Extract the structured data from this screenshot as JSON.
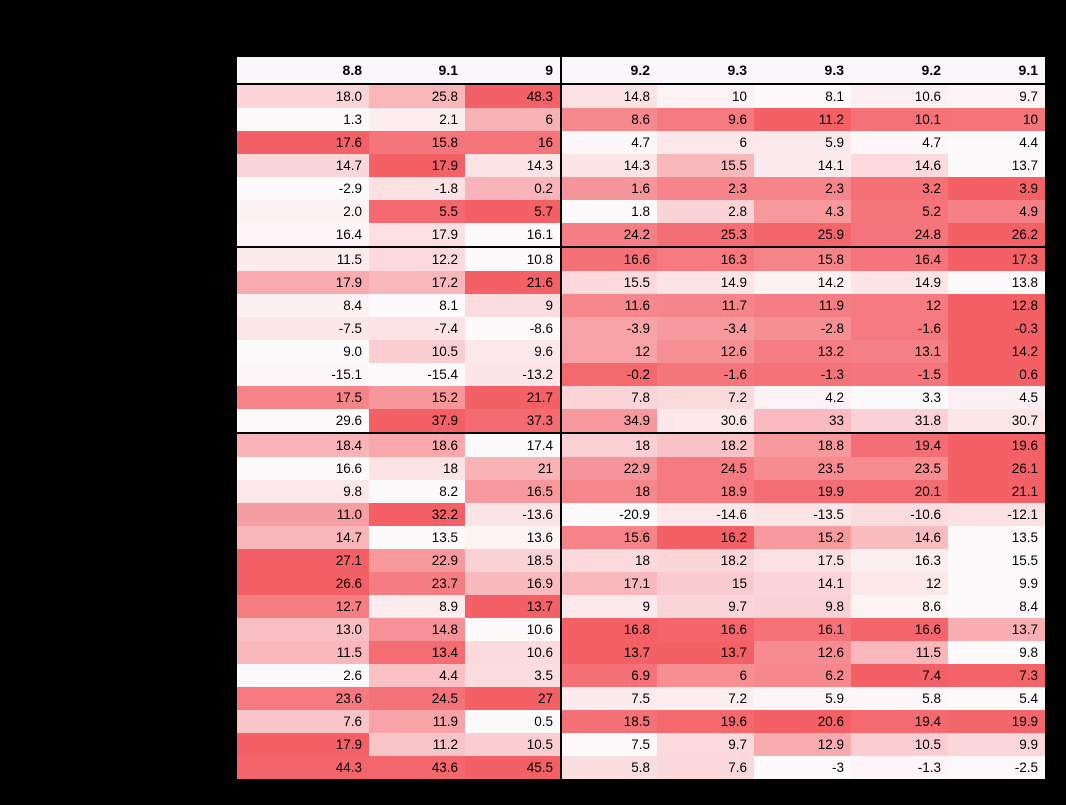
{
  "page": {
    "background_color": "#000000"
  },
  "chart_data": {
    "type": "heatmap",
    "layout_hint": "table heatmap, per-row min-max shading white to red, right-aligned numerals, black group separator rules after rows 7 and 15, vertical black divider after column 3",
    "colors": {
      "gradient_min": "#fdfafc",
      "gradient_max": "#f36167",
      "header_background": "#f9f7fa",
      "border": "#000000",
      "text": "#000000"
    },
    "columns": [
      "8.8",
      "9.1",
      "9",
      "9.2",
      "9.3",
      "9.3",
      "9.2",
      "9.1"
    ],
    "group_breaks_after_row": [
      7,
      15
    ],
    "rows": [
      [
        "18.0",
        "25.8",
        "48.3",
        "14.8",
        "10",
        "8.1",
        "10.6",
        "9.7"
      ],
      [
        "1.3",
        "2.1",
        "6",
        "8.6",
        "9.6",
        "11.2",
        "10.1",
        "10"
      ],
      [
        "17.6",
        "15.8",
        "16",
        "4.7",
        "6",
        "5.9",
        "4.7",
        "4.4"
      ],
      [
        "14.7",
        "17.9",
        "14.3",
        "14.3",
        "15.5",
        "14.1",
        "14.6",
        "13.7"
      ],
      [
        "-2.9",
        "-1.8",
        "0.2",
        "1.6",
        "2.3",
        "2.3",
        "3.2",
        "3.9"
      ],
      [
        "2.0",
        "5.5",
        "5.7",
        "1.8",
        "2.8",
        "4.3",
        "5.2",
        "4.9"
      ],
      [
        "16.4",
        "17.9",
        "16.1",
        "24.2",
        "25.3",
        "25.9",
        "24.8",
        "26.2"
      ],
      [
        "11.5",
        "12.2",
        "10.8",
        "16.6",
        "16.3",
        "15.8",
        "16.4",
        "17.3"
      ],
      [
        "17.9",
        "17.2",
        "21.6",
        "15.5",
        "14.9",
        "14.2",
        "14.9",
        "13.8"
      ],
      [
        "8.4",
        "8.1",
        "9",
        "11.6",
        "11.7",
        "11.9",
        "12",
        "12.8"
      ],
      [
        "-7.5",
        "-7.4",
        "-8.6",
        "-3.9",
        "-3.4",
        "-2.8",
        "-1.6",
        "-0.3"
      ],
      [
        "9.0",
        "10.5",
        "9.6",
        "12",
        "12.6",
        "13.2",
        "13.1",
        "14.2"
      ],
      [
        "-15.1",
        "-15.4",
        "-13.2",
        "-0.2",
        "-1.6",
        "-1.3",
        "-1.5",
        "0.6"
      ],
      [
        "17.5",
        "15.2",
        "21.7",
        "7.8",
        "7.2",
        "4.2",
        "3.3",
        "4.5"
      ],
      [
        "29.6",
        "37.9",
        "37.3",
        "34.9",
        "30.6",
        "33",
        "31.8",
        "30.7"
      ],
      [
        "18.4",
        "18.6",
        "17.4",
        "18",
        "18.2",
        "18.8",
        "19.4",
        "19.6"
      ],
      [
        "16.6",
        "18",
        "21",
        "22.9",
        "24.5",
        "23.5",
        "23.5",
        "26.1"
      ],
      [
        "9.8",
        "8.2",
        "16.5",
        "18",
        "18.9",
        "19.9",
        "20.1",
        "21.1"
      ],
      [
        "11.0",
        "32.2",
        "-13.6",
        "-20.9",
        "-14.6",
        "-13.5",
        "-10.6",
        "-12.1"
      ],
      [
        "14.7",
        "13.5",
        "13.6",
        "15.6",
        "16.2",
        "15.2",
        "14.6",
        "13.5"
      ],
      [
        "27.1",
        "22.9",
        "18.5",
        "18",
        "18.2",
        "17.5",
        "16.3",
        "15.5"
      ],
      [
        "26.6",
        "23.7",
        "16.9",
        "17.1",
        "15",
        "14.1",
        "12",
        "9.9"
      ],
      [
        "12.7",
        "8.9",
        "13.7",
        "9",
        "9.7",
        "9.8",
        "8.6",
        "8.4"
      ],
      [
        "13.0",
        "14.8",
        "10.6",
        "16.8",
        "16.6",
        "16.1",
        "16.6",
        "13.7"
      ],
      [
        "11.5",
        "13.4",
        "10.6",
        "13.7",
        "13.7",
        "12.6",
        "11.5",
        "9.8"
      ],
      [
        "2.6",
        "4.4",
        "3.5",
        "6.9",
        "6",
        "6.2",
        "7.4",
        "7.3"
      ],
      [
        "23.6",
        "24.5",
        "27",
        "7.5",
        "7.2",
        "5.9",
        "5.8",
        "5.4"
      ],
      [
        "7.6",
        "11.9",
        "0.5",
        "18.5",
        "19.6",
        "20.6",
        "19.4",
        "19.9"
      ],
      [
        "17.9",
        "11.2",
        "10.5",
        "7.5",
        "9.7",
        "12.9",
        "10.5",
        "9.9"
      ],
      [
        "44.3",
        "43.6",
        "45.5",
        "5.8",
        "7.6",
        "-3",
        "-1.3",
        "-2.5"
      ]
    ]
  }
}
